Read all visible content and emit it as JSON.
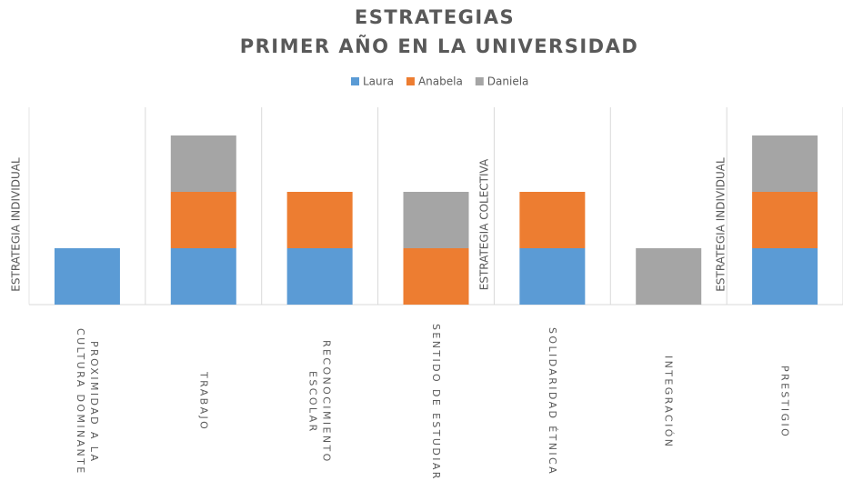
{
  "chart_data": {
    "type": "stacked_bar",
    "title": "ESTRATEGIAS",
    "subtitle": "PRIMER AÑO EN LA UNIVERSIDAD",
    "categories": [
      "PROXIMIDAD A LA CULTURA DOMINANTE",
      "TRABAJO",
      "RECONOCIMIENTO ESCOLAR",
      "SENTIDO DE ESTUDIAR",
      "SOLIDARIDAD ÉTNICA",
      "INTEGRACIÓN",
      "PRESTIGIO"
    ],
    "series": [
      {
        "name": "Laura",
        "color": "#5b9bd5",
        "values": [
          1,
          1,
          1,
          0,
          1,
          0,
          1
        ]
      },
      {
        "name": "Anabela",
        "color": "#ed7d31",
        "values": [
          0,
          1,
          1,
          1,
          1,
          0,
          1
        ]
      },
      {
        "name": "Daniela",
        "color": "#a5a5a5",
        "values": [
          0,
          1,
          0,
          1,
          0,
          1,
          1
        ]
      }
    ],
    "annotations": [
      "ESTRATEGIA INDIVIDUAL",
      "ESTRATEGIA COLECTIVA",
      "ESTRATEGIA INDIVIDUAL"
    ],
    "ylim": [
      0,
      3.5
    ],
    "legend": "top"
  }
}
